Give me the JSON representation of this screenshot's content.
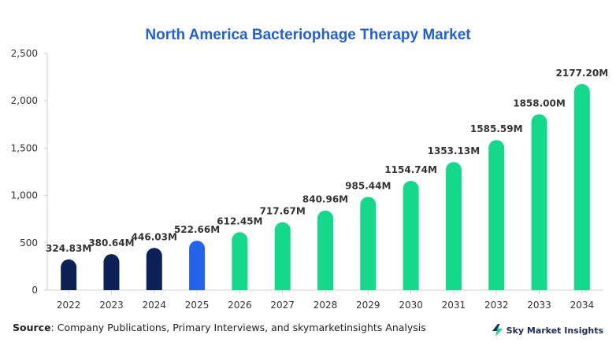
{
  "chart_data": {
    "type": "bar",
    "title": "North America Bacteriophage Therapy Market",
    "categories": [
      "2022",
      "2023",
      "2024",
      "2025",
      "2026",
      "2027",
      "2028",
      "2029",
      "2030",
      "2031",
      "2032",
      "2033",
      "2034"
    ],
    "values": [
      324.83,
      380.64,
      446.03,
      522.66,
      612.45,
      717.67,
      840.96,
      985.44,
      1154.74,
      1353.13,
      1585.59,
      1858.0,
      2177.2
    ],
    "data_labels": [
      "324.83M",
      "380.64M",
      "446.03M",
      "522.66M",
      "612.45M",
      "717.67M",
      "840.96M",
      "985.44M",
      "1154.74M",
      "1353.13M",
      "1585.59M",
      "1858.00M",
      "2177.20M"
    ],
    "ylim": [
      0,
      2500
    ],
    "yticks": [
      0,
      500,
      1000,
      1500,
      2000,
      2500
    ],
    "ytick_labels": [
      "0",
      "500",
      "1,000",
      "1,500",
      "2,000",
      "2,500"
    ],
    "xlabel": "",
    "ylabel": "",
    "grid": false,
    "colors": {
      "historical": "#0d2157",
      "current": "#2563eb",
      "forecast": "#14d98a",
      "title": "#1f5fe0"
    },
    "bar_color_groups": [
      "historical",
      "historical",
      "historical",
      "current",
      "forecast",
      "forecast",
      "forecast",
      "forecast",
      "forecast",
      "forecast",
      "forecast",
      "forecast",
      "forecast"
    ]
  },
  "footer": {
    "source_label": "Source",
    "source_text": ": Company Publications, Primary Interviews, and skymarketinsights Analysis",
    "brand_name": "Sky Market Insights",
    "brand_icon": "lightning-bolt-icon"
  }
}
